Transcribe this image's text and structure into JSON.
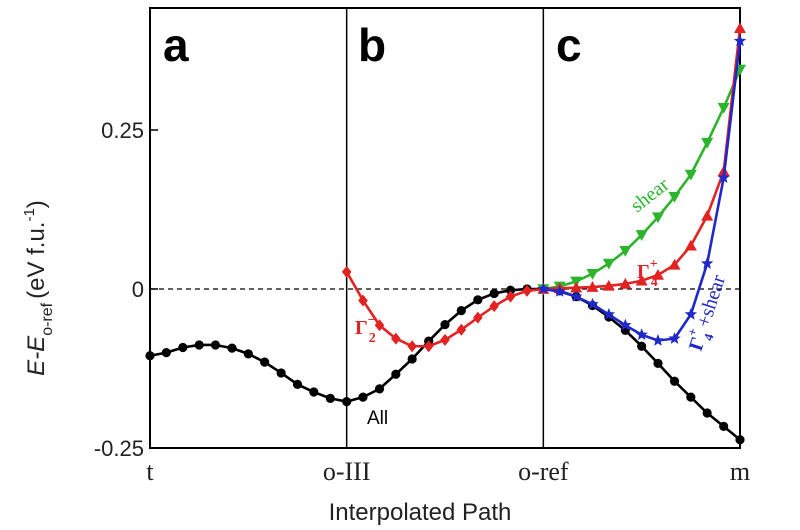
{
  "chart_data": {
    "type": "line",
    "ylabel": {
      "main": "E-E",
      "sub": "o-ref",
      "units": "(eV f.u.",
      "units_sup": "-1",
      "units_close": ")"
    },
    "xlabel": "Interpolated Path",
    "x_ticks": [
      "t",
      "o-III",
      "o-ref",
      "m"
    ],
    "y_ticks": [
      {
        "value": 0.25,
        "label": "0.25"
      },
      {
        "value": 0,
        "label": "0"
      },
      {
        "value": -0.25,
        "label": "-0.25"
      }
    ],
    "ylim": [
      -0.25,
      0.45
    ],
    "xlim": [
      0,
      3
    ],
    "panels": [
      "a",
      "b",
      "c"
    ],
    "zero_line": "dashed",
    "series": [
      {
        "key": "all",
        "label": {
          "text": "All",
          "base": "",
          "sup": "",
          "sub": "",
          "suffix": ""
        },
        "color": "#000000",
        "marker": "circle",
        "x": [
          0.0,
          0.083,
          0.167,
          0.25,
          0.333,
          0.417,
          0.5,
          0.583,
          0.667,
          0.75,
          0.833,
          0.917,
          1.0,
          1.083,
          1.167,
          1.25,
          1.333,
          1.417,
          1.5,
          1.583,
          1.667,
          1.75,
          1.833,
          1.917,
          2.0,
          2.083,
          2.167,
          2.25,
          2.333,
          2.417,
          2.5,
          2.583,
          2.667,
          2.75,
          2.833,
          2.917,
          3.0
        ],
        "y": [
          -0.105,
          -0.1,
          -0.092,
          -0.088,
          -0.088,
          -0.093,
          -0.102,
          -0.115,
          -0.132,
          -0.15,
          -0.162,
          -0.172,
          -0.177,
          -0.17,
          -0.157,
          -0.134,
          -0.11,
          -0.082,
          -0.056,
          -0.034,
          -0.017,
          -0.007,
          -0.002,
          0.0,
          0.0,
          -0.003,
          -0.012,
          -0.026,
          -0.044,
          -0.065,
          -0.09,
          -0.117,
          -0.145,
          -0.17,
          -0.195,
          -0.216,
          -0.237
        ]
      },
      {
        "key": "gamma2",
        "label": {
          "text": "",
          "base": "Γ",
          "sup": "−",
          "sub": "2",
          "suffix": ""
        },
        "color": "#e32222",
        "marker": "diamond",
        "x": [
          1.0,
          1.083,
          1.167,
          1.25,
          1.333,
          1.417,
          1.5,
          1.583,
          1.667,
          1.75,
          1.833,
          1.917,
          2.0
        ],
        "y": [
          0.027,
          -0.018,
          -0.057,
          -0.078,
          -0.09,
          -0.09,
          -0.08,
          -0.064,
          -0.045,
          -0.027,
          -0.012,
          -0.003,
          0.0
        ]
      },
      {
        "key": "shear",
        "label": {
          "text": "shear",
          "base": "",
          "sup": "",
          "sub": "",
          "suffix": ""
        },
        "color": "#2cb52c",
        "marker": "triangle-down",
        "x": [
          2.0,
          2.083,
          2.167,
          2.25,
          2.333,
          2.417,
          2.5,
          2.583,
          2.667,
          2.75,
          2.833,
          2.917,
          3.0
        ],
        "y": [
          0.0,
          0.004,
          0.012,
          0.024,
          0.04,
          0.06,
          0.085,
          0.113,
          0.145,
          0.18,
          0.23,
          0.285,
          0.345
        ]
      },
      {
        "key": "gamma4",
        "label": {
          "text": "",
          "base": "Γ",
          "sup": "+",
          "sub": "4",
          "suffix": ""
        },
        "color": "#e32222",
        "marker": "triangle-up",
        "x": [
          2.0,
          2.083,
          2.167,
          2.25,
          2.333,
          2.417,
          2.5,
          2.583,
          2.667,
          2.75,
          2.833,
          2.917,
          3.0
        ],
        "y": [
          0.0,
          0.001,
          0.002,
          0.003,
          0.005,
          0.008,
          0.013,
          0.022,
          0.038,
          0.068,
          0.115,
          0.185,
          0.41
        ]
      },
      {
        "key": "gamma4shear",
        "label": {
          "text": "",
          "base": "Γ",
          "sup": "+",
          "sub": "4",
          "suffix": " +shear"
        },
        "color": "#1f28c8",
        "marker": "star",
        "x": [
          2.0,
          2.083,
          2.167,
          2.25,
          2.333,
          2.417,
          2.5,
          2.583,
          2.667,
          2.75,
          2.833,
          2.917,
          3.0
        ],
        "y": [
          0.0,
          -0.004,
          -0.012,
          -0.024,
          -0.04,
          -0.057,
          -0.072,
          -0.081,
          -0.078,
          -0.04,
          0.04,
          0.175,
          0.39
        ]
      }
    ]
  }
}
